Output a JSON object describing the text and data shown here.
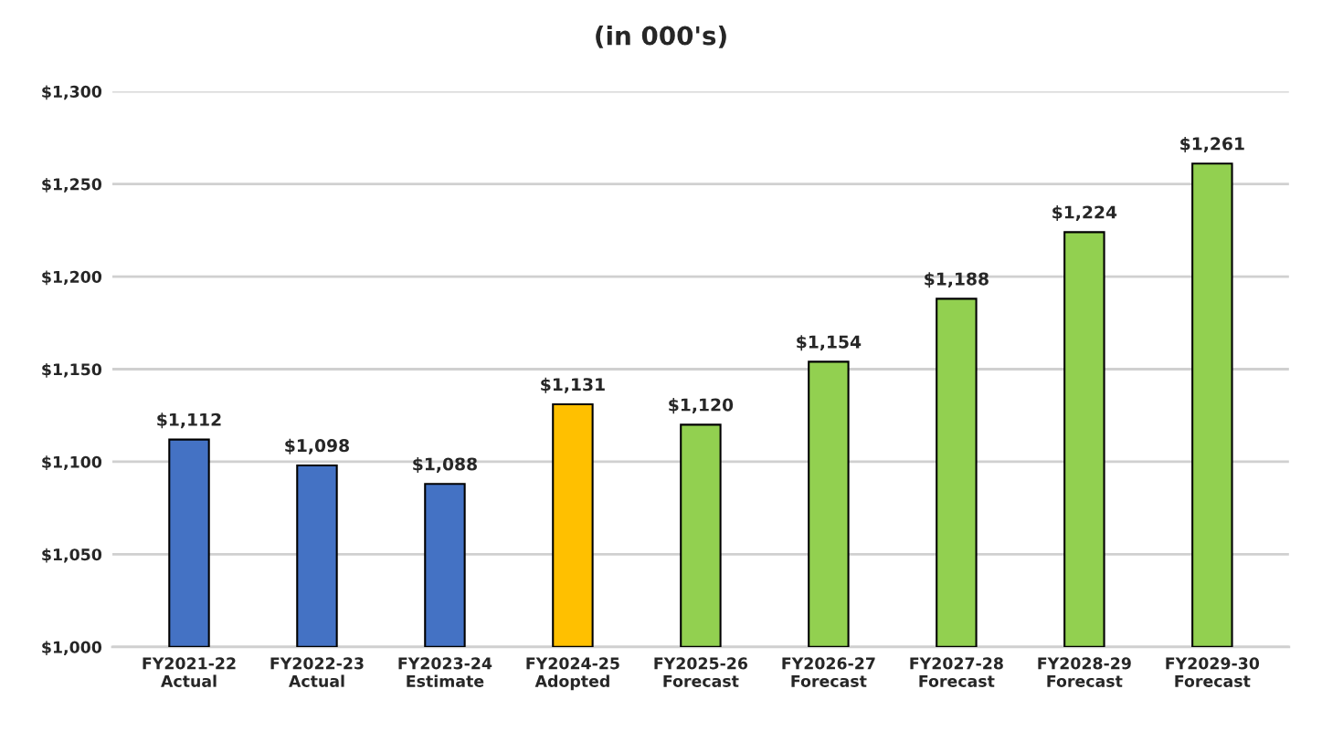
{
  "chart_data": {
    "type": "bar",
    "title": "(in 000's)",
    "categories": [
      "FY2021-22\nActual",
      "FY2022-23\nActual",
      "FY2023-24\nEstimate",
      "FY2024-25\nAdopted",
      "FY2025-26\nForecast",
      "FY2026-27\nForecast",
      "FY2027-28\nForecast",
      "FY2028-29\nForecast",
      "FY2029-30\nForecast"
    ],
    "values": [
      1112,
      1098,
      1088,
      1131,
      1120,
      1154,
      1188,
      1224,
      1261
    ],
    "value_labels": [
      "$1,112",
      "$1,098",
      "$1,088",
      "$1,131",
      "$1,120",
      "$1,154",
      "$1,188",
      "$1,224",
      "$1,261"
    ],
    "colors": [
      "#4472c4",
      "#4472c4",
      "#4472c4",
      "#ffc000",
      "#92d050",
      "#92d050",
      "#92d050",
      "#92d050",
      "#92d050"
    ],
    "ylim": [
      1000,
      1300
    ],
    "yticks": [
      {
        "value": 1000,
        "label": "$1,000"
      },
      {
        "value": 1050,
        "label": "$1,050"
      },
      {
        "value": 1100,
        "label": "$1,100"
      },
      {
        "value": 1150,
        "label": "$1,150"
      },
      {
        "value": 1200,
        "label": "$1,200"
      },
      {
        "value": 1250,
        "label": "$1,250"
      },
      {
        "value": 1300,
        "label": "$1,300"
      }
    ],
    "grid": "y",
    "legend": false
  }
}
